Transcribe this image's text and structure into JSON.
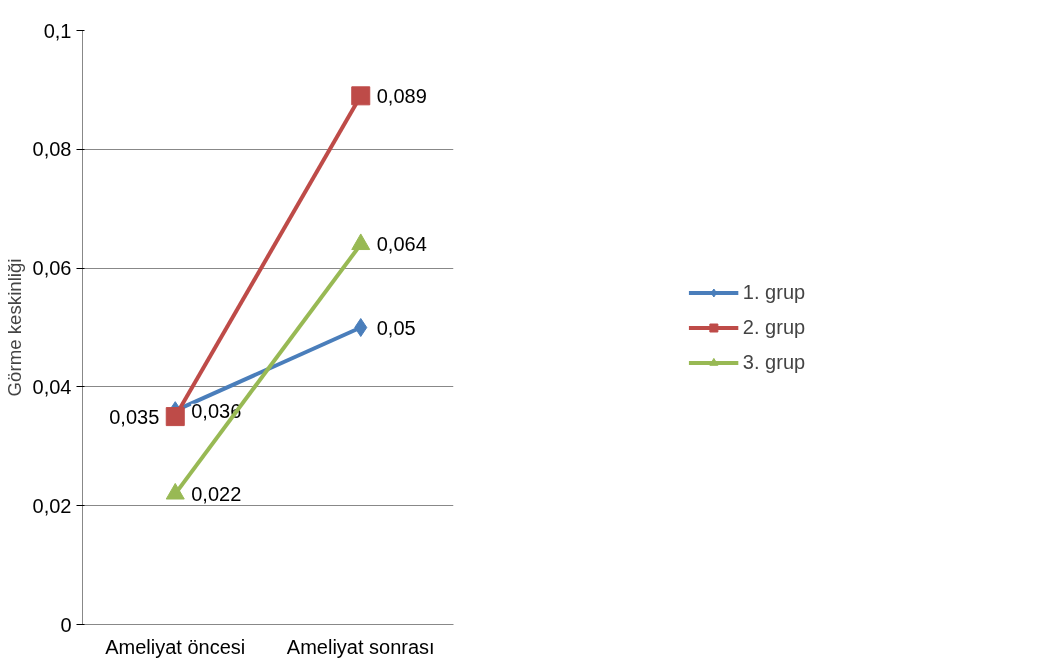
{
  "chart_data": {
    "type": "line",
    "ylabel": "Görme keskinliği",
    "categories": [
      "Ameliyat öncesi",
      "Ameliyat sonrası"
    ],
    "series": [
      {
        "name": "1. grup",
        "color": "#4a7ebb",
        "marker": "diamond",
        "values": [
          0.036,
          0.05
        ],
        "value_labels": [
          "0,036",
          "0,05"
        ]
      },
      {
        "name": "2. grup",
        "color": "#be4b48",
        "marker": "square",
        "values": [
          0.035,
          0.089
        ],
        "value_labels": [
          "0,035",
          "0,089"
        ]
      },
      {
        "name": "3. grup",
        "color": "#98b954",
        "marker": "triangle",
        "values": [
          0.022,
          0.064
        ],
        "value_labels": [
          "0,022",
          "0,064"
        ]
      }
    ],
    "ylim": [
      0,
      0.1
    ],
    "yticks": [
      {
        "value": 0,
        "label": "0"
      },
      {
        "value": 0.02,
        "label": "0,02"
      },
      {
        "value": 0.04,
        "label": "0,04"
      },
      {
        "value": 0.06,
        "label": "0,06"
      },
      {
        "value": 0.08,
        "label": "0,08"
      },
      {
        "value": 0.1,
        "label": "0,1"
      }
    ],
    "grid": "y",
    "legend": "right",
    "line_style": "solid"
  }
}
